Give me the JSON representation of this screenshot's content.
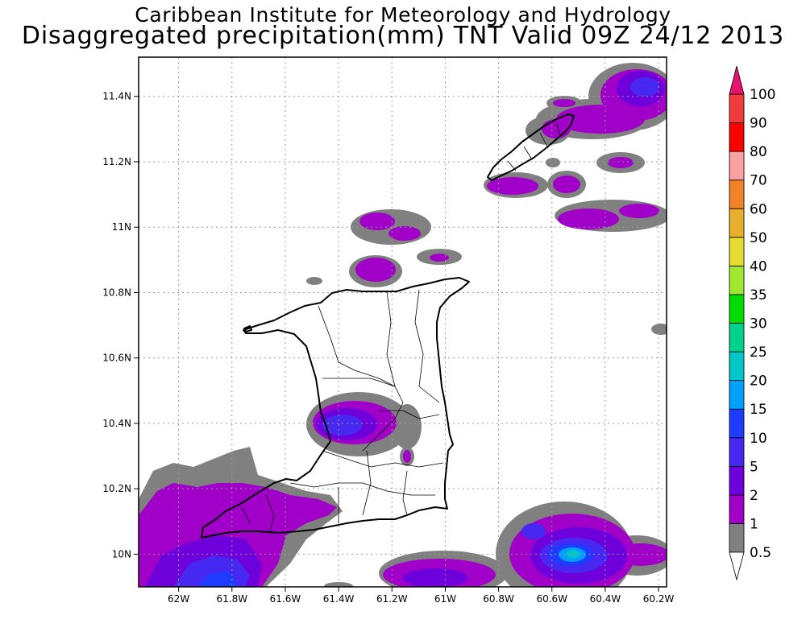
{
  "header": {
    "title": "Caribbean Institute for Meteorology and Hydrology",
    "subtitle": "Disaggregated precipitation(mm) TNT Valid 09Z 24/12 2013"
  },
  "map": {
    "lon_range": [
      -62.15,
      -60.17
    ],
    "lat_range": [
      9.9,
      11.52
    ],
    "x_ticks": [
      {
        "value": -62.0,
        "label": "62W"
      },
      {
        "value": -61.8,
        "label": "61.8W"
      },
      {
        "value": -61.6,
        "label": "61.6W"
      },
      {
        "value": -61.4,
        "label": "61.4W"
      },
      {
        "value": -61.2,
        "label": "61.2W"
      },
      {
        "value": -61.0,
        "label": "61W"
      },
      {
        "value": -60.8,
        "label": "60.8W"
      },
      {
        "value": -60.6,
        "label": "60.6W"
      },
      {
        "value": -60.4,
        "label": "60.4W"
      },
      {
        "value": -60.2,
        "label": "60.2W"
      }
    ],
    "y_ticks": [
      {
        "value": 10.0,
        "label": "10N"
      },
      {
        "value": 10.2,
        "label": "10.2N"
      },
      {
        "value": 10.4,
        "label": "10.4N"
      },
      {
        "value": 10.6,
        "label": "10.6N"
      },
      {
        "value": 10.8,
        "label": "10.8N"
      },
      {
        "value": 11.0,
        "label": "11N"
      },
      {
        "value": 11.2,
        "label": "11.2N"
      },
      {
        "value": 11.4,
        "label": "11.4N"
      }
    ],
    "grid": "dotted"
  },
  "colorbar": {
    "levels": [
      "0.5",
      "1",
      "2",
      "5",
      "10",
      "15",
      "20",
      "25",
      "30",
      "35",
      "40",
      "50",
      "60",
      "70",
      "80",
      "90",
      "100"
    ],
    "colors": [
      "#ffffff",
      "#808080",
      "#a000c8",
      "#6e00dc",
      "#4628f0",
      "#1e3cff",
      "#00a0ff",
      "#00c8c8",
      "#00d28c",
      "#00dc00",
      "#a0e632",
      "#e6dc32",
      "#e6af2d",
      "#f08228",
      "#faa0a0",
      "#fa0000",
      "#f03c3c",
      "#e6146e"
    ]
  },
  "precip_colors": {
    "grey": "#808080",
    "purple": "#a000c8",
    "violet": "#6e00dc",
    "blue": "#4628f0",
    "deepblue": "#1e3cff",
    "sky": "#00a0ff",
    "teal": "#00c8c8"
  }
}
